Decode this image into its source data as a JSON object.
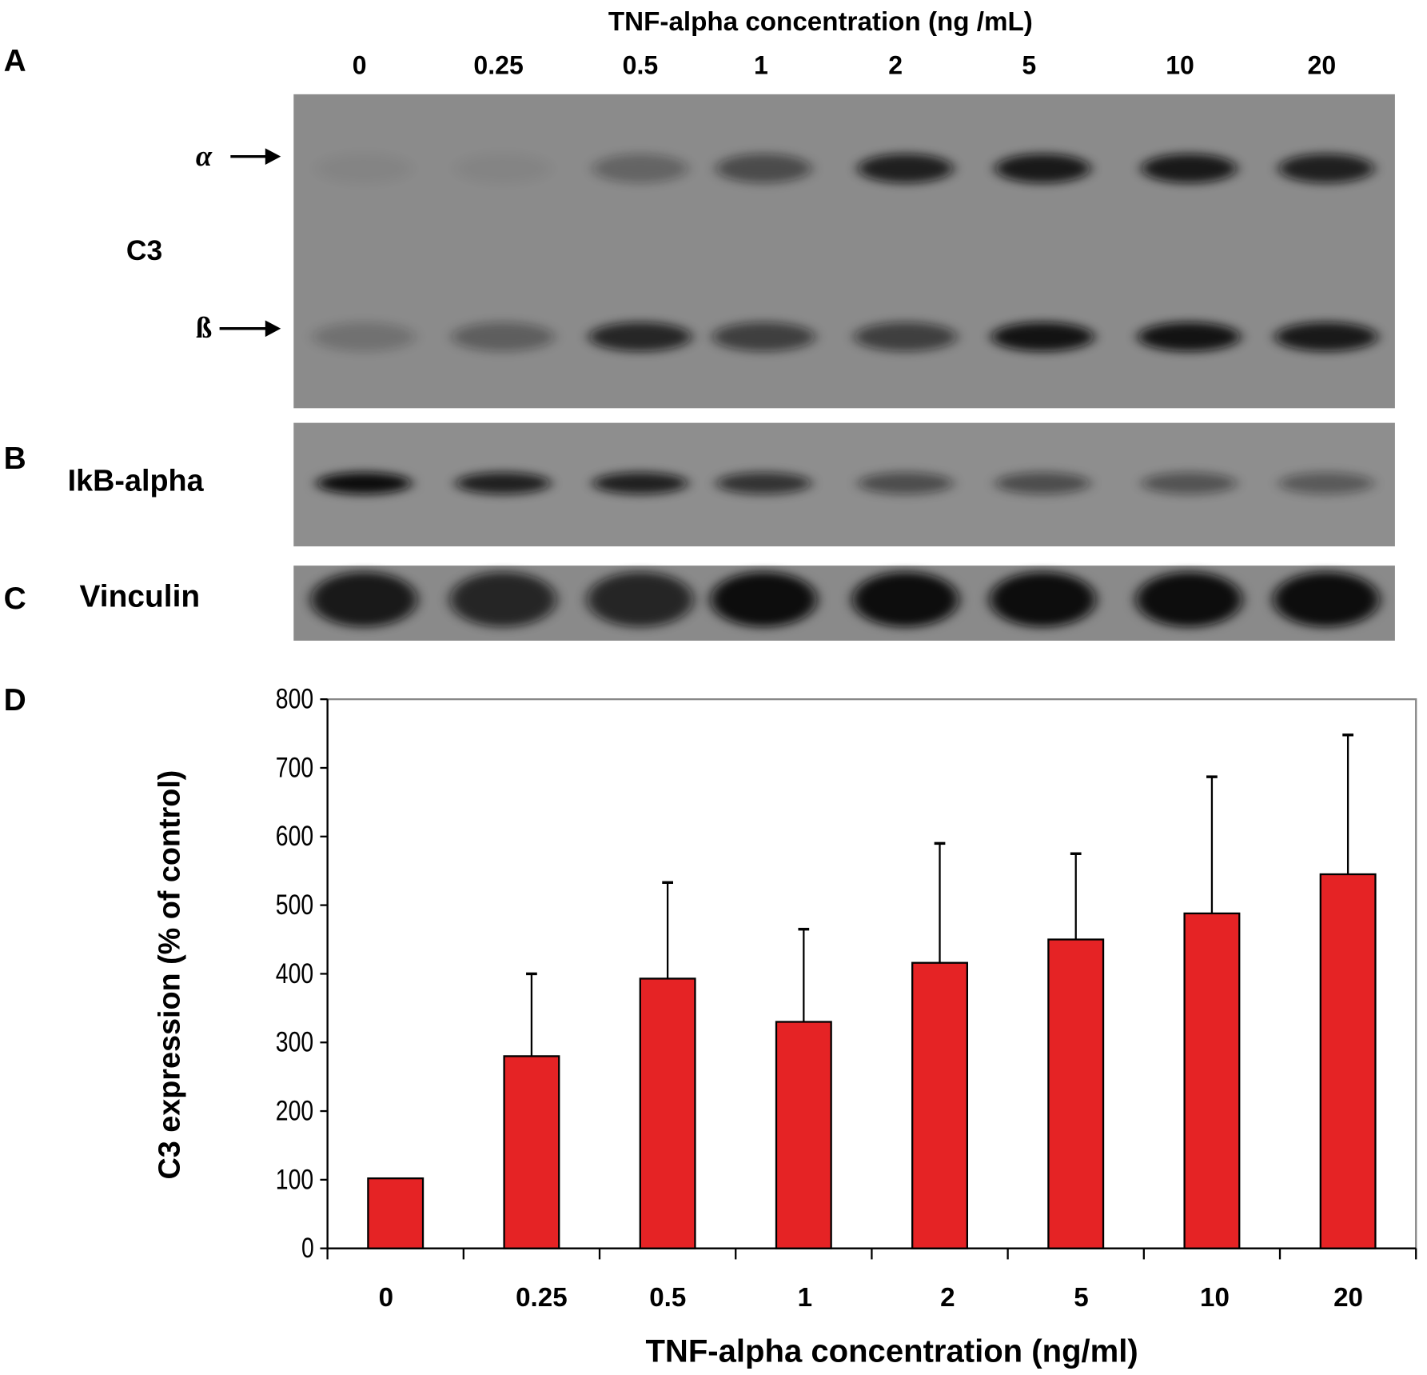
{
  "blot": {
    "header": "TNF-alpha concentration (ng /mL)",
    "lanes": [
      "0",
      "0.25",
      "0.5",
      "1",
      "2",
      "5",
      "10",
      "20"
    ],
    "panel_a": {
      "letter": "A",
      "label": "C3",
      "alpha_label": "α",
      "beta_label": "ß",
      "alpha_intensity": [
        0.05,
        0.05,
        0.3,
        0.5,
        0.85,
        0.9,
        0.9,
        0.85
      ],
      "beta_intensity": [
        0.2,
        0.35,
        0.8,
        0.6,
        0.6,
        0.95,
        0.95,
        0.9
      ]
    },
    "panel_b": {
      "letter": "B",
      "label": "IkB-alpha",
      "intensity": [
        1.0,
        0.85,
        0.85,
        0.7,
        0.5,
        0.5,
        0.45,
        0.4
      ]
    },
    "panel_c": {
      "letter": "C",
      "label": "Vinculin",
      "intensity": [
        0.9,
        0.8,
        0.8,
        1.0,
        1.0,
        1.0,
        1.0,
        1.0
      ]
    }
  },
  "chart_data": {
    "panel_letter": "D",
    "type": "bar",
    "categories": [
      "0",
      "0.25",
      "0.5",
      "1",
      "2",
      "5",
      "10",
      "20"
    ],
    "values": [
      102,
      280,
      393,
      330,
      416,
      450,
      488,
      545
    ],
    "error_upper": [
      null,
      120,
      140,
      135,
      174,
      125,
      199,
      203
    ],
    "xlabel": "TNF-alpha concentration (ng/ml)",
    "ylabel": "C3 expression  (% of control)",
    "ylim": [
      0,
      800
    ],
    "yticks": [
      "0",
      "100",
      "200",
      "300",
      "400",
      "500",
      "600",
      "700",
      "800"
    ],
    "bar_color": "#e52325",
    "grid": false,
    "legend": "none"
  }
}
